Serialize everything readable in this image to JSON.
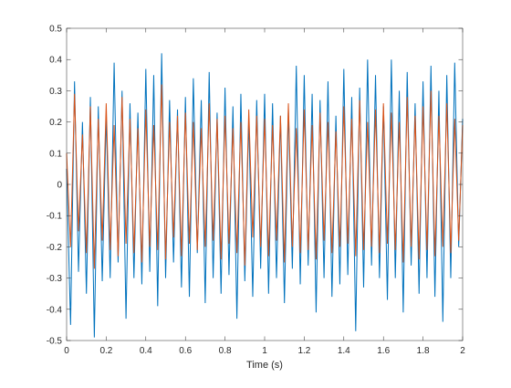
{
  "chart_data": {
    "type": "line",
    "title": "",
    "xlabel": "Time (s)",
    "ylabel": "",
    "xlim": [
      0,
      2
    ],
    "ylim": [
      -0.5,
      0.5
    ],
    "xticks": [
      0,
      0.2,
      0.4,
      0.6,
      0.8,
      1,
      1.2,
      1.4,
      1.6,
      1.8,
      2
    ],
    "xtick_labels": [
      "0",
      "0.2",
      "0.4",
      "0.6",
      "0.8",
      "1",
      "1.2",
      "1.4",
      "1.6",
      "1.8",
      "2"
    ],
    "yticks": [
      -0.5,
      -0.4,
      -0.3,
      -0.2,
      -0.1,
      0,
      0.1,
      0.2,
      0.3,
      0.4,
      0.5
    ],
    "ytick_labels": [
      "-0.5",
      "-0.4",
      "-0.3",
      "-0.2",
      "-0.1",
      "0",
      "0.1",
      "0.2",
      "0.3",
      "0.4",
      "0.5"
    ],
    "grid": false,
    "legend": "none",
    "series": [
      {
        "color": "#0072BD",
        "x": [
          0,
          0.02,
          0.04,
          0.06,
          0.08,
          0.1,
          0.12,
          0.14,
          0.16,
          0.18,
          0.2,
          0.22,
          0.24,
          0.26,
          0.28,
          0.3,
          0.32,
          0.34,
          0.36,
          0.38,
          0.4,
          0.42,
          0.44,
          0.46,
          0.48,
          0.5,
          0.52,
          0.54,
          0.56,
          0.58,
          0.6,
          0.62,
          0.64,
          0.66,
          0.68,
          0.7,
          0.72,
          0.74,
          0.76,
          0.78,
          0.8,
          0.82,
          0.84,
          0.86,
          0.88,
          0.9,
          0.92,
          0.94,
          0.96,
          0.98,
          1,
          1.02,
          1.04,
          1.06,
          1.08,
          1.1,
          1.12,
          1.14,
          1.16,
          1.18,
          1.2,
          1.22,
          1.24,
          1.26,
          1.28,
          1.3,
          1.32,
          1.34,
          1.36,
          1.38,
          1.4,
          1.42,
          1.44,
          1.46,
          1.48,
          1.5,
          1.52,
          1.54,
          1.56,
          1.58,
          1.6,
          1.62,
          1.64,
          1.66,
          1.68,
          1.7,
          1.72,
          1.74,
          1.76,
          1.78,
          1.8,
          1.82,
          1.84,
          1.86,
          1.88,
          1.9,
          1.92,
          1.94,
          1.96,
          1.98,
          2
        ],
        "y": [
          0.05,
          -0.45,
          0.33,
          -0.28,
          0.2,
          -0.35,
          0.28,
          -0.49,
          0.25,
          -0.31,
          0.22,
          -0.3,
          0.39,
          -0.25,
          0.3,
          -0.43,
          0.26,
          -0.3,
          0.23,
          -0.32,
          0.37,
          -0.28,
          0.35,
          -0.39,
          0.42,
          -0.3,
          0.27,
          -0.25,
          0.24,
          -0.33,
          0.28,
          -0.36,
          0.34,
          -0.22,
          0.27,
          -0.38,
          0.36,
          -0.3,
          0.23,
          -0.35,
          0.31,
          -0.29,
          0.25,
          -0.43,
          0.29,
          -0.31,
          0.21,
          -0.36,
          0.27,
          -0.27,
          0.29,
          -0.35,
          0.26,
          -0.3,
          0.22,
          -0.38,
          0.24,
          -0.27,
          0.38,
          -0.32,
          0.35,
          -0.26,
          0.29,
          -0.41,
          0.27,
          -0.3,
          0.33,
          -0.36,
          0.22,
          -0.32,
          0.37,
          -0.29,
          0.28,
          -0.47,
          0.31,
          -0.33,
          0.4,
          -0.26,
          0.35,
          -0.3,
          0.25,
          -0.37,
          0.4,
          -0.3,
          0.3,
          -0.41,
          0.36,
          -0.26,
          0.26,
          -0.35,
          0.33,
          -0.3,
          0.38,
          -0.36,
          0.3,
          -0.44,
          0.35,
          -0.3,
          0.39,
          -0.2,
          0.21
        ]
      },
      {
        "color": "#D95319",
        "x": [
          0,
          0.02,
          0.04,
          0.06,
          0.08,
          0.1,
          0.12,
          0.14,
          0.16,
          0.18,
          0.2,
          0.22,
          0.24,
          0.26,
          0.28,
          0.3,
          0.32,
          0.34,
          0.36,
          0.38,
          0.4,
          0.42,
          0.44,
          0.46,
          0.48,
          0.5,
          0.52,
          0.54,
          0.56,
          0.58,
          0.6,
          0.62,
          0.64,
          0.66,
          0.68,
          0.7,
          0.72,
          0.74,
          0.76,
          0.78,
          0.8,
          0.82,
          0.84,
          0.86,
          0.88,
          0.9,
          0.92,
          0.94,
          0.96,
          0.98,
          1,
          1.02,
          1.04,
          1.06,
          1.08,
          1.1,
          1.12,
          1.14,
          1.16,
          1.18,
          1.2,
          1.22,
          1.24,
          1.26,
          1.28,
          1.3,
          1.32,
          1.34,
          1.36,
          1.38,
          1.4,
          1.42,
          1.44,
          1.46,
          1.48,
          1.5,
          1.52,
          1.54,
          1.56,
          1.58,
          1.6,
          1.62,
          1.64,
          1.66,
          1.68,
          1.7,
          1.72,
          1.74,
          1.76,
          1.78,
          1.8,
          1.82,
          1.84,
          1.86,
          1.88,
          1.9,
          1.92,
          1.94,
          1.96,
          1.98,
          2
        ],
        "y": [
          0.1,
          -0.2,
          0.29,
          -0.15,
          0.16,
          -0.22,
          0.25,
          -0.27,
          0.21,
          -0.18,
          0.26,
          -0.21,
          0.19,
          -0.23,
          0.28,
          -0.19,
          0.21,
          -0.22,
          0.18,
          -0.25,
          0.24,
          -0.2,
          0.19,
          -0.21,
          0.32,
          -0.24,
          0.2,
          -0.17,
          0.22,
          -0.23,
          0.23,
          -0.19,
          0.2,
          -0.21,
          0.18,
          -0.2,
          0.26,
          -0.18,
          0.21,
          -0.24,
          0.22,
          -0.19,
          0.18,
          -0.22,
          0.2,
          -0.26,
          0.24,
          -0.17,
          0.22,
          -0.2,
          0.21,
          -0.23,
          0.19,
          -0.18,
          0.22,
          -0.25,
          0.26,
          -0.2,
          0.18,
          -0.22,
          0.24,
          -0.21,
          0.19,
          -0.24,
          0.23,
          -0.18,
          0.2,
          -0.22,
          0.17,
          -0.2,
          0.25,
          -0.19,
          0.21,
          -0.23,
          0.27,
          -0.21,
          0.2,
          -0.2,
          0.24,
          -0.22,
          0.26,
          -0.19,
          0.23,
          -0.21,
          0.2,
          -0.25,
          0.28,
          -0.2,
          0.22,
          -0.24,
          0.25,
          -0.21,
          0.3,
          -0.23,
          0.22,
          -0.2,
          0.26,
          -0.22,
          0.21,
          -0.18,
          0.19
        ]
      }
    ]
  }
}
